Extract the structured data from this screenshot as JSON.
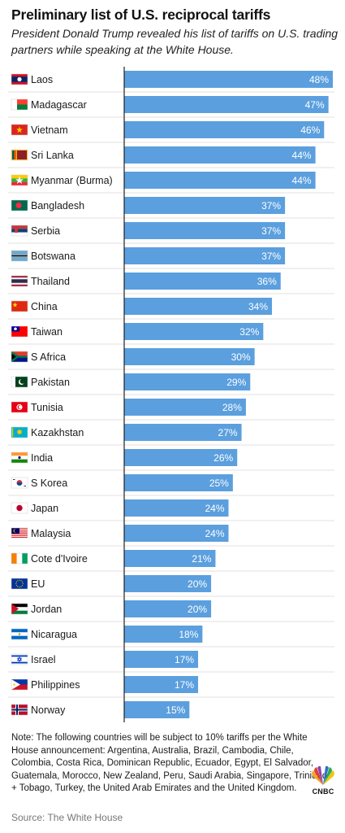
{
  "title": "Preliminary list of U.S. reciprocal tariffs",
  "subtitle": "President Donald Trump revealed his list of tariffs on U.S. trading partners while speaking at the White House.",
  "note": "Note: The following countries will be subject to 10% tariffs per the White House announcement: Argentina, Australia, Brazil, Cambodia, Chile, Colombia, Costa Rica, Dominican Republic, Ecuador, Egypt, El Salvador, Guatemala, Morocco, New Zealand, Peru, Saudi Arabia, Singapore, Trinidad + Tobago, Turkey, the United Arab Emirates and the United Kingdom.",
  "source": "Source: The White House",
  "logo_text": "CNBC",
  "colors": {
    "bar": "#5b9fde",
    "bar_label": "#ffffff",
    "axis": "#222222",
    "row_divider": "#e2e2e2"
  },
  "chart_data": {
    "type": "bar",
    "orientation": "horizontal",
    "title": "Preliminary list of U.S. reciprocal tariffs",
    "categories": [
      "Laos",
      "Madagascar",
      "Vietnam",
      "Sri Lanka",
      "Myanmar (Burma)",
      "Bangladesh",
      "Serbia",
      "Botswana",
      "Thailand",
      "China",
      "Taiwan",
      "S Africa",
      "Pakistan",
      "Tunisia",
      "Kazakhstan",
      "India",
      "S Korea",
      "Japan",
      "Malaysia",
      "Cote d'Ivoire",
      "EU",
      "Jordan",
      "Nicaragua",
      "Israel",
      "Philippines",
      "Norway"
    ],
    "values": [
      48,
      47,
      46,
      44,
      44,
      37,
      37,
      37,
      36,
      34,
      32,
      30,
      29,
      28,
      27,
      26,
      25,
      24,
      24,
      21,
      20,
      20,
      18,
      17,
      17,
      15
    ],
    "labels": [
      "48%",
      "47%",
      "46%",
      "44%",
      "44%",
      "37%",
      "37%",
      "37%",
      "36%",
      "34%",
      "32%",
      "30%",
      "29%",
      "28%",
      "27%",
      "26%",
      "25%",
      "24%",
      "24%",
      "21%",
      "20%",
      "20%",
      "18%",
      "17%",
      "17%",
      "15%"
    ],
    "flags": [
      "flag-laos-icon",
      "flag-madagascar-icon",
      "flag-vietnam-icon",
      "flag-sri-lanka-icon",
      "flag-myanmar-icon",
      "flag-bangladesh-icon",
      "flag-serbia-icon",
      "flag-botswana-icon",
      "flag-thailand-icon",
      "flag-china-icon",
      "flag-taiwan-icon",
      "flag-south-africa-icon",
      "flag-pakistan-icon",
      "flag-tunisia-icon",
      "flag-kazakhstan-icon",
      "flag-india-icon",
      "flag-south-korea-icon",
      "flag-japan-icon",
      "flag-malaysia-icon",
      "flag-cote-divoire-icon",
      "flag-eu-icon",
      "flag-jordan-icon",
      "flag-nicaragua-icon",
      "flag-israel-icon",
      "flag-philippines-icon",
      "flag-norway-icon"
    ],
    "xlim": [
      0,
      48
    ],
    "grid": false,
    "legend": "none"
  }
}
